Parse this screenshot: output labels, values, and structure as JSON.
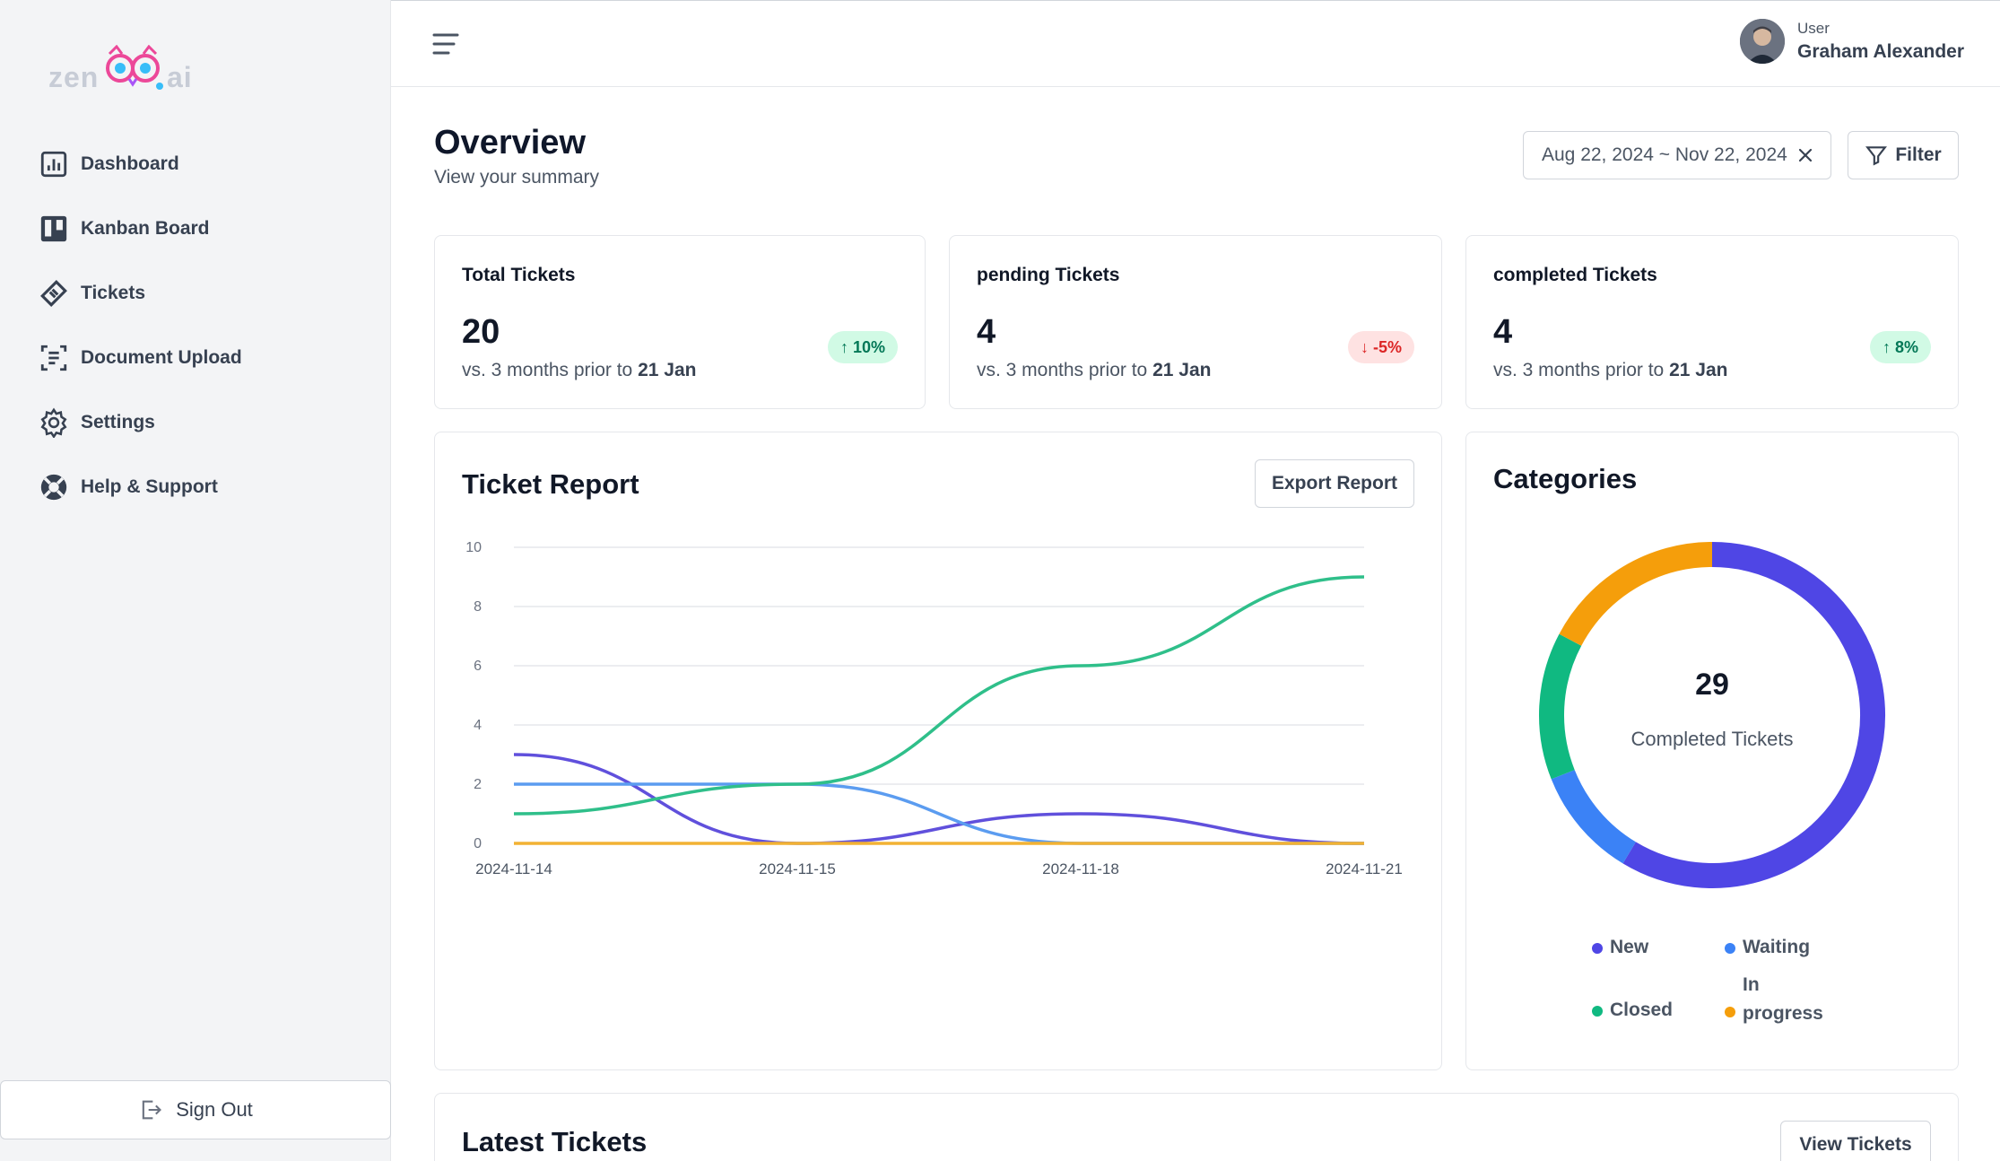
{
  "brand": {
    "logo_left": "zen",
    "logo_right": "ai"
  },
  "sidebar": {
    "items": [
      {
        "label": "Dashboard",
        "icon": "chart-icon"
      },
      {
        "label": "Kanban Board",
        "icon": "kanban-icon"
      },
      {
        "label": "Tickets",
        "icon": "ticket-icon"
      },
      {
        "label": "Document Upload",
        "icon": "document-scan-icon"
      },
      {
        "label": "Settings",
        "icon": "gear-icon"
      },
      {
        "label": "Help & Support",
        "icon": "lifebuoy-icon"
      }
    ],
    "signout_label": "Sign Out"
  },
  "header": {
    "user_role": "User",
    "user_name": "Graham Alexander"
  },
  "overview": {
    "title": "Overview",
    "subtitle": "View your summary",
    "date_range": "Aug 22, 2024 ~ Nov 22, 2024",
    "filter_label": "Filter"
  },
  "stats": [
    {
      "title": "Total Tickets",
      "value": "20",
      "sub_prefix": "vs. 3 months prior to",
      "sub_date": "21 Jan",
      "change": "10%",
      "direction": "up"
    },
    {
      "title": "pending Tickets",
      "value": "4",
      "sub_prefix": "vs. 3 months prior to",
      "sub_date": "21 Jan",
      "change": "-5%",
      "direction": "down"
    },
    {
      "title": "completed Tickets",
      "value": "4",
      "sub_prefix": "vs. 3 months prior to",
      "sub_date": "21 Jan",
      "change": "8%",
      "direction": "up"
    }
  ],
  "report": {
    "title": "Ticket Report",
    "export_label": "Export Report"
  },
  "categories": {
    "title": "Categories",
    "center_value": "29",
    "center_label": "Completed Tickets",
    "legend": [
      {
        "name": "New",
        "color": "#4f46e5"
      },
      {
        "name": "Waiting",
        "color": "#3b82f6"
      },
      {
        "name": "Closed",
        "color": "#10b981"
      },
      {
        "name": "In progress",
        "color": "#f59e0b"
      }
    ]
  },
  "latest": {
    "title": "Latest Tickets",
    "view_label": "View Tickets"
  },
  "chart_data": [
    {
      "type": "line",
      "title": "Ticket Report",
      "x": [
        "2024-11-14",
        "2024-11-15",
        "2024-11-18",
        "2024-11-21"
      ],
      "ylim": [
        0,
        10
      ],
      "yticks": [
        0,
        2,
        4,
        6,
        8,
        10
      ],
      "grid": true,
      "series": [
        {
          "color": "#6050dc",
          "values": [
            3,
            0,
            1,
            0
          ]
        },
        {
          "color": "#5b9cf0",
          "values": [
            2,
            2,
            0,
            0
          ]
        },
        {
          "color": "#2fbf8a",
          "values": [
            1,
            2,
            6,
            9
          ]
        },
        {
          "color": "#f2b233",
          "values": [
            0,
            0,
            0,
            0
          ]
        }
      ]
    },
    {
      "type": "pie",
      "title": "Categories",
      "categories": [
        "New",
        "Waiting",
        "Closed",
        "In progress"
      ],
      "values": [
        17,
        3,
        4,
        5
      ],
      "colors": [
        "#4f46e5",
        "#3b82f6",
        "#10b981",
        "#f59e0b"
      ]
    }
  ]
}
